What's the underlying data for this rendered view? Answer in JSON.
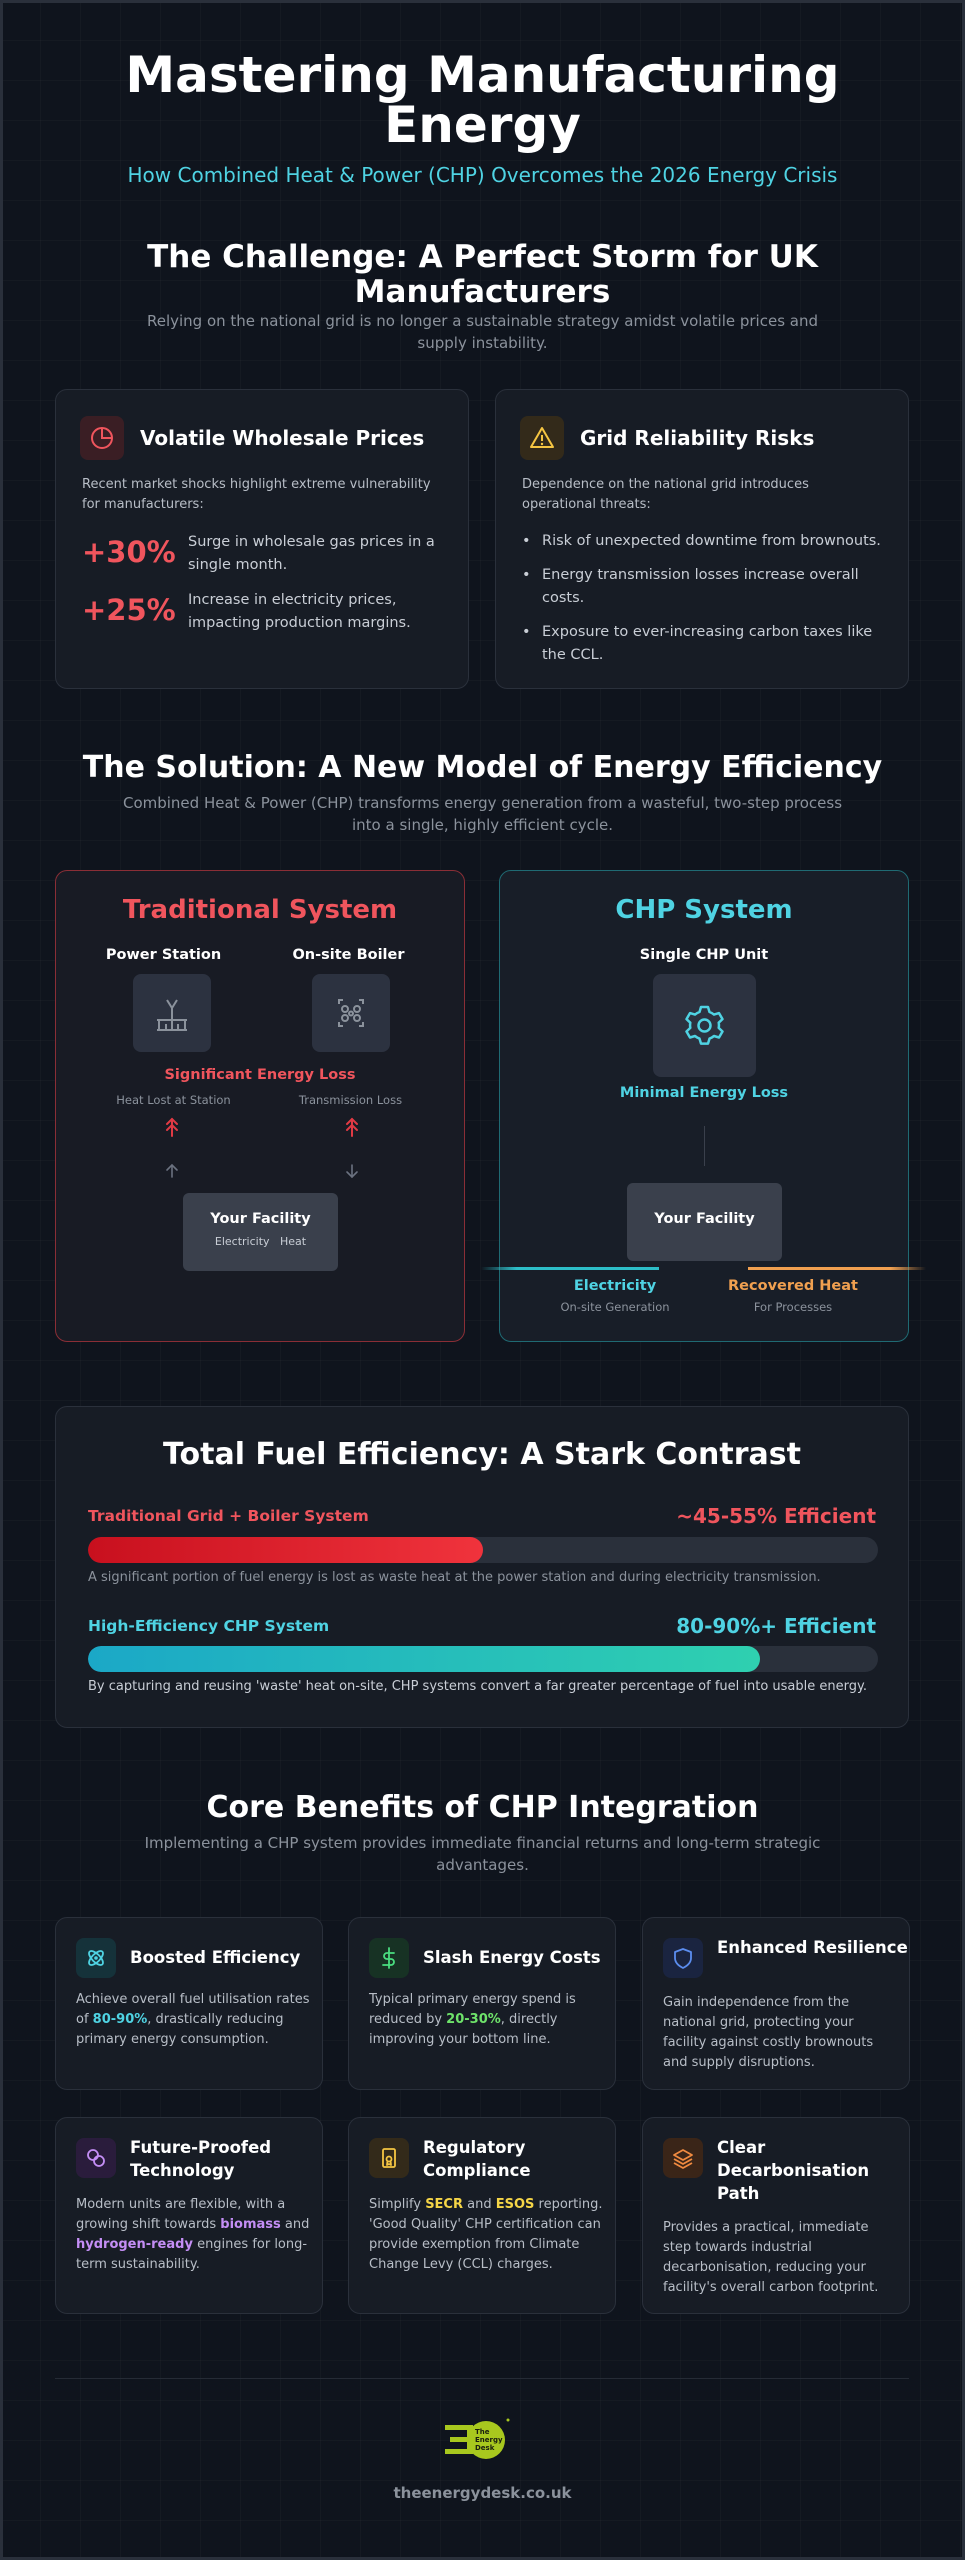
{
  "hero": {
    "title": "Mastering Manufacturing Energy",
    "subtitle": "How Combined Heat & Power (CHP) Overcomes the 2026 Energy Crisis"
  },
  "challenge": {
    "title": "The Challenge: A Perfect Storm for UK Manufacturers",
    "subtitle": "Relying on the national grid is no longer a sustainable strategy amidst volatile prices and supply instability.",
    "prices": {
      "icon": "pie-chart-icon",
      "title": "Volatile Wholesale Prices",
      "desc": "Recent market shocks highlight extreme vulnerability for manufacturers:",
      "stats": [
        {
          "value": "+30%",
          "text": "Surge in wholesale gas prices in a single month."
        },
        {
          "value": "+25%",
          "text": "Increase in electricity prices, impacting production margins."
        }
      ]
    },
    "grid": {
      "icon": "warning-icon",
      "title": "Grid Reliability Risks",
      "desc": "Dependence on the national grid introduces operational threats:",
      "bullets": [
        "Risk of unexpected downtime from brownouts.",
        "Energy transmission losses increase overall costs.",
        "Exposure to ever-increasing carbon taxes like the CCL."
      ]
    }
  },
  "solution": {
    "title": "The Solution: A New Model of Energy Efficiency",
    "subtitle": "Combined Heat & Power (CHP) transforms energy generation from a wasteful, two-step process into a single, highly efficient cycle.",
    "traditional": {
      "title": "Traditional System",
      "power_station": "Power Station",
      "boiler": "On-site Boiler",
      "loss": "Significant Energy Loss",
      "heat_lost": "Heat Lost at Station",
      "transmission_loss": "Transmission Loss",
      "facility": "Your Facility",
      "facility_electricity": "Electricity",
      "facility_heat": "Heat"
    },
    "chp": {
      "title": "CHP System",
      "unit": "Single CHP Unit",
      "loss": "Minimal Energy Loss",
      "facility": "Your Facility",
      "electricity": "Electricity",
      "electricity_sub": "On-site Generation",
      "heat": "Recovered Heat",
      "heat_sub": "For Processes"
    }
  },
  "efficiency": {
    "title": "Total Fuel Efficiency: A Stark Contrast",
    "traditional": {
      "label": "Traditional Grid + Boiler System",
      "value_text": "~45-55% Efficient",
      "fill_fraction": 0.5,
      "note": "A significant portion of fuel energy is lost as waste heat at the power station and during electricity transmission."
    },
    "chp": {
      "label": "High-Efficiency CHP System",
      "value_text": "80-90%+ Efficient",
      "fill_fraction": 0.85,
      "note": "By capturing and reusing 'waste' heat on-site, CHP systems convert a far greater percentage of fuel into usable energy."
    }
  },
  "benefits": {
    "title": "Core Benefits of CHP Integration",
    "subtitle": "Implementing a CHP system provides immediate financial returns and long-term strategic advantages.",
    "items": [
      {
        "icon": "atom-icon",
        "title": "Boosted Efficiency",
        "pre": "Achieve overall fuel utilisation rates of ",
        "hl": "80-90%",
        "post": ", drastically reducing primary energy consumption."
      },
      {
        "icon": "dollar-icon",
        "title": "Slash Energy Costs",
        "pre": "Typical primary energy spend is reduced by ",
        "hl": "20-30%",
        "post": ", directly improving your bottom line."
      },
      {
        "icon": "shield-icon",
        "title": "Enhanced Resilience",
        "desc": "Gain independence from the national grid, protecting your facility against costly brownouts and supply disruptions."
      },
      {
        "icon": "link-icon",
        "title": "Future-Proofed Technology",
        "pre": "Modern units are flexible, with a growing shift towards ",
        "hl": "biomass",
        "mid": " and ",
        "hl2": "hydrogen-ready",
        "post": " engines for long-term sustainability."
      },
      {
        "icon": "certificate-icon",
        "title": "Regulatory Compliance",
        "pre": "Simplify ",
        "hl": "SECR",
        "mid": " and ",
        "hl2": "ESOS",
        "post": " reporting. 'Good Quality' CHP certification can provide exemption from Climate Change Levy (CCL) charges."
      },
      {
        "icon": "layers-icon",
        "title": "Clear Decarbonisation Path",
        "desc": "Provides a practical, immediate step towards industrial decarbonisation, reducing your facility's overall carbon footprint."
      }
    ]
  },
  "footer": {
    "logo_text": "The Energy Desk",
    "url": "theenergydesk.co.uk"
  },
  "colors": {
    "accent_cyan": "#4fd3e3",
    "accent_red": "#f0555d",
    "accent_orange": "#f0a050",
    "logo_green": "#a8c81e"
  }
}
